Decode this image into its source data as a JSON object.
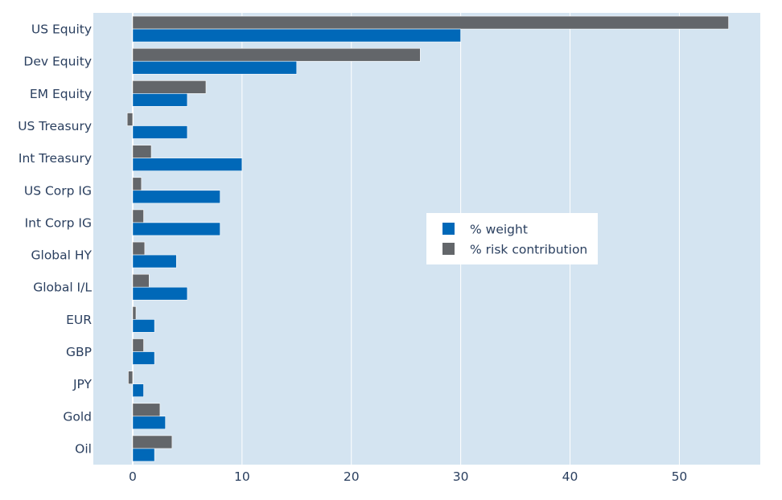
{
  "chart_data": {
    "type": "bar",
    "orientation": "horizontal",
    "categories": [
      "US Equity",
      "Dev Equity",
      "EM Equity",
      "US Treasury",
      "Int Treasury",
      "US Corp IG",
      "Int Corp IG",
      "Global HY",
      "Global I/L",
      "EUR",
      "GBP",
      "JPY",
      "Gold",
      "Oil"
    ],
    "series": [
      {
        "name": "% weight",
        "color": "#0068b8",
        "values": [
          30,
          15,
          5,
          5,
          10,
          8,
          8,
          4,
          5,
          2,
          2,
          1,
          3,
          2
        ]
      },
      {
        "name": "% risk contribution",
        "color": "#63666a",
        "values": [
          54.5,
          26.3,
          6.7,
          -0.5,
          1.7,
          0.8,
          1.0,
          1.1,
          1.5,
          0.3,
          1.0,
          -0.4,
          2.5,
          3.6
        ]
      }
    ],
    "x_ticks": [
      0,
      10,
      20,
      30,
      40,
      50
    ],
    "xlim": [
      -3.6,
      57.4
    ],
    "grid": true,
    "plot_bgcolor": "#d4e4f1",
    "legend_position": "center-right",
    "title": "",
    "xlabel": "",
    "ylabel": ""
  }
}
